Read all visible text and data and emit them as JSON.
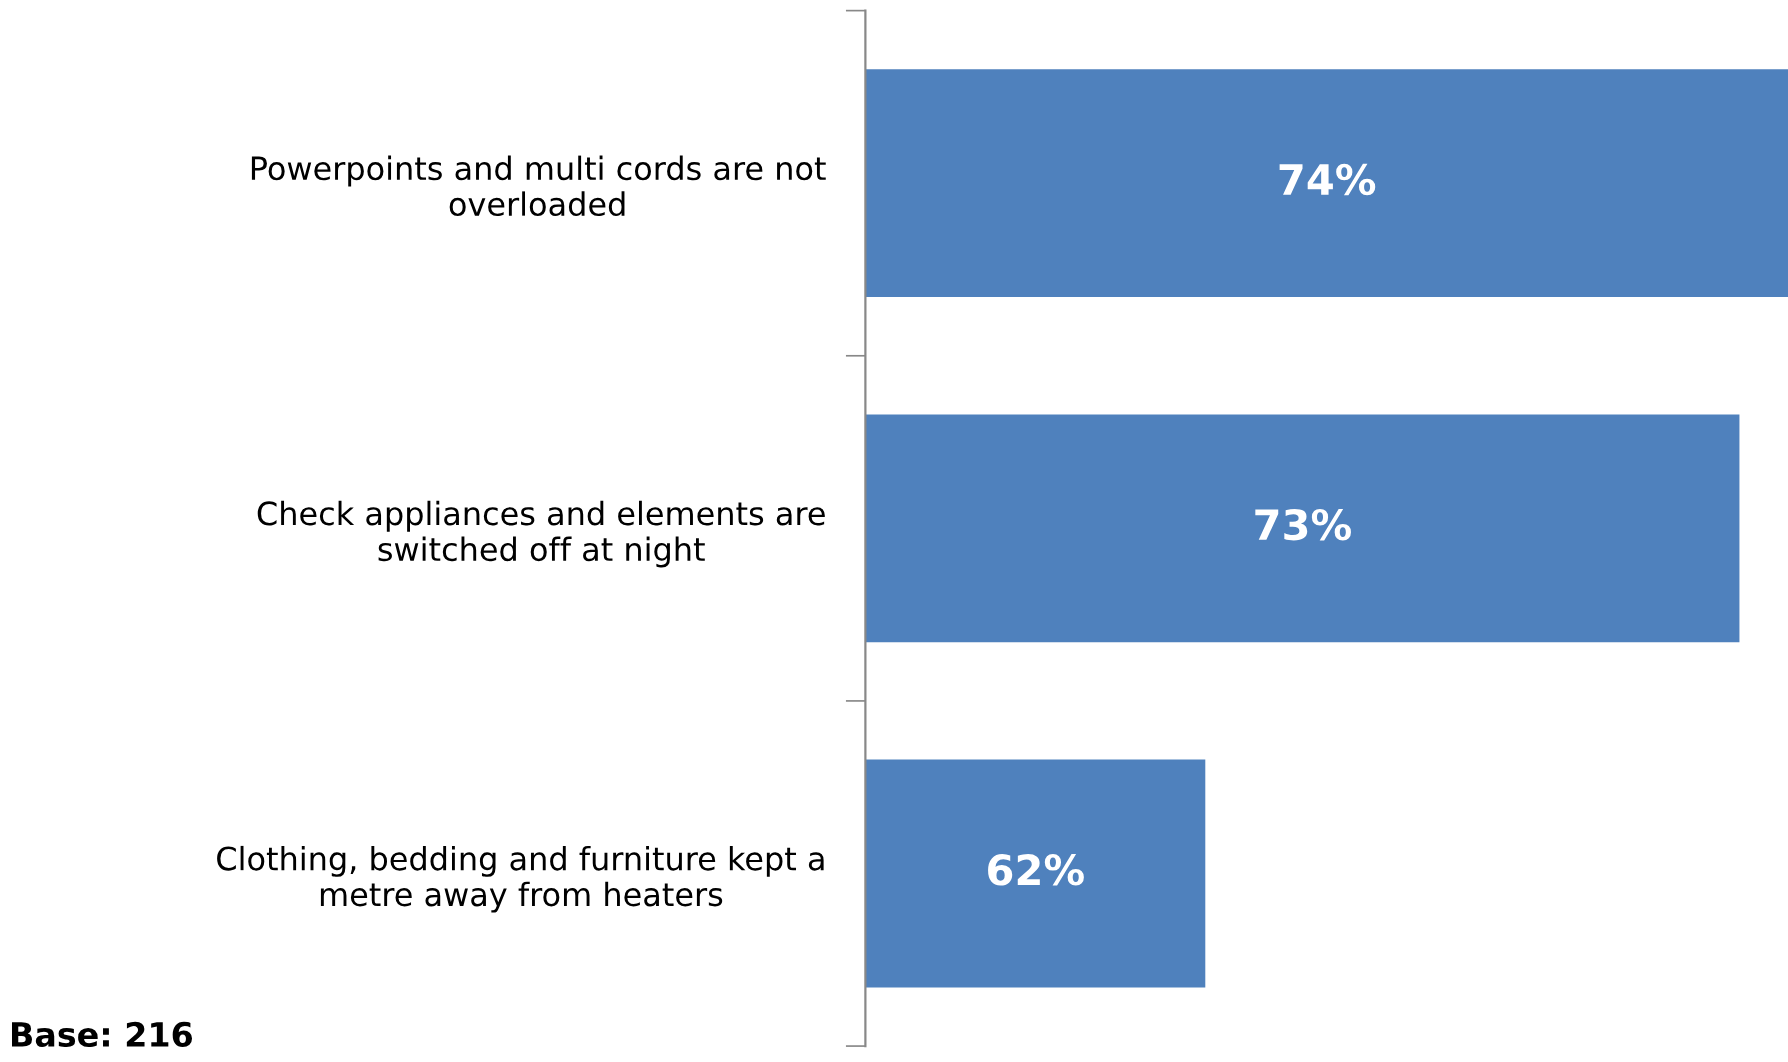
{
  "chart_data": {
    "type": "bar",
    "orientation": "horizontal",
    "categories": [
      "Powerpoints and multi cords are not\noverloaded",
      "Check appliances and elements are\nswitched off at night",
      "Clothing, bedding and furniture kept a\nmetre away from heaters"
    ],
    "values": [
      74,
      73,
      62
    ],
    "color": "#4f81bd",
    "xlim": [
      55,
      74
    ],
    "data_labels": true,
    "value_labels": [
      "74%",
      "73%",
      "62%"
    ],
    "tick_labels": "y",
    "grid": false,
    "legend": false,
    "annotations": [
      "Base: 216"
    ]
  }
}
